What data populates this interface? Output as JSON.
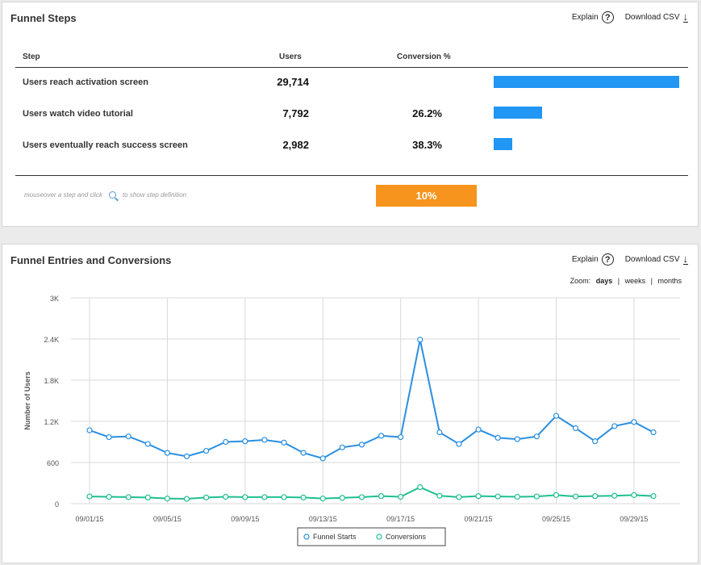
{
  "funnel_steps": {
    "title": "Funnel Steps",
    "explain_label": "Explain",
    "explain_icon": "?",
    "download_label": "Download CSV",
    "download_icon": "download-arrow-icon",
    "columns": {
      "step": "Step",
      "users": "Users",
      "conversion": "Conversion %"
    },
    "steps": [
      {
        "label": "Users reach activation screen",
        "users": "29,714",
        "conversion": "",
        "bar_fraction": 1.0
      },
      {
        "label": "Users watch video tutorial",
        "users": "7,792",
        "conversion": "26.2%",
        "bar_fraction": 0.262
      },
      {
        "label": "Users eventually reach success screen",
        "users": "2,982",
        "conversion": "38.3%",
        "bar_fraction": 0.1
      }
    ],
    "hint_before": "mouseover a step and click",
    "hint_after": "to show step definition",
    "overall_conversion": "10%",
    "colors": {
      "bar": "#2196f3",
      "overall": "#f7941d"
    }
  },
  "entries": {
    "title": "Funnel Entries and Conversions",
    "explain_label": "Explain",
    "explain_icon": "?",
    "download_label": "Download CSV",
    "zoom": {
      "label": "Zoom:",
      "options": [
        "days",
        "weeks",
        "months"
      ],
      "selected": "days",
      "separator": "|"
    }
  },
  "chart_data": {
    "type": "line",
    "ylabel": "Number of Users",
    "ylim": [
      0,
      3000
    ],
    "yticks": [
      0,
      600,
      1200,
      1800,
      2400,
      3000
    ],
    "ytick_labels": [
      "0",
      "600",
      "1.2K",
      "1.8K",
      "2.4K",
      "3K"
    ],
    "x": [
      "09/01/15",
      "09/02/15",
      "09/03/15",
      "09/04/15",
      "09/05/15",
      "09/06/15",
      "09/07/15",
      "09/08/15",
      "09/09/15",
      "09/10/15",
      "09/11/15",
      "09/12/15",
      "09/13/15",
      "09/14/15",
      "09/15/15",
      "09/16/15",
      "09/17/15",
      "09/18/15",
      "09/19/15",
      "09/20/15",
      "09/21/15",
      "09/22/15",
      "09/23/15",
      "09/24/15",
      "09/25/15",
      "09/26/15",
      "09/27/15",
      "09/28/15",
      "09/29/15",
      "09/30/15"
    ],
    "xtick_labels": [
      "09/01/15",
      "09/05/15",
      "09/09/15",
      "09/13/15",
      "09/17/15",
      "09/21/15",
      "09/25/15",
      "09/29/15"
    ],
    "grid": true,
    "legend_position": "bottom",
    "series": [
      {
        "name": "Funnel Starts",
        "color": "#2b8fe0",
        "values": [
          1070,
          970,
          980,
          870,
          740,
          690,
          770,
          900,
          910,
          930,
          890,
          740,
          660,
          820,
          860,
          990,
          970,
          2390,
          1040,
          870,
          1080,
          960,
          940,
          980,
          1280,
          1100,
          910,
          1130,
          1190,
          1040
        ]
      },
      {
        "name": "Conversions",
        "color": "#1fbf8f",
        "values": [
          105,
          100,
          95,
          90,
          75,
          70,
          90,
          100,
          95,
          95,
          95,
          90,
          75,
          85,
          95,
          110,
          100,
          240,
          115,
          95,
          110,
          105,
          100,
          105,
          125,
          105,
          110,
          115,
          125,
          110
        ]
      }
    ]
  }
}
